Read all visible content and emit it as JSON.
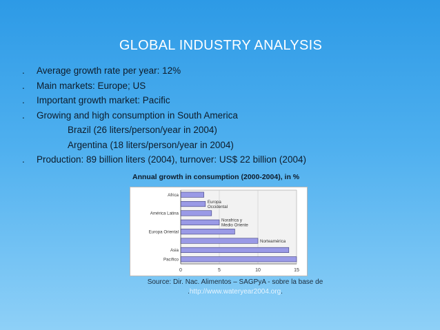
{
  "slide": {
    "title": "GLOBAL INDUSTRY ANALYSIS",
    "bullets": [
      {
        "mark": ".",
        "text": "Average growth rate per year: 12%"
      },
      {
        "mark": ".",
        "text": "Main markets: Europe; US"
      },
      {
        "mark": ".",
        "text": "Important growth market: Pacific"
      },
      {
        "mark": ".",
        "text": "Growing and high consumption in South America"
      },
      {
        "mark": "",
        "text": "Brazil (26 liters/person/year  in 2004)"
      },
      {
        "mark": "",
        "text": "Argentina (18 liters/person/year in 2004)"
      },
      {
        "mark": ".",
        "text": "Production: 89 billion liters (2004), turnover: US$ 22 billion (2004)"
      }
    ],
    "chart_caption": "Annual growth in consumption (2000-2004), in %",
    "source_line1": "Source: Dir. Nac. Alimentos – SAGPyA - sobre la base de",
    "source_prefix": ".",
    "source_link": "http://www.wateryear2004.org",
    "source_suffix": "."
  },
  "colors": {
    "background_top": "#2d9ae6",
    "background_bottom": "#8ed0f7",
    "bar_fill": "#9a9ae6",
    "bar_stroke": "#3c3c7a"
  },
  "chart_data": {
    "type": "bar",
    "orientation": "horizontal",
    "title": "Annual growth in consumption (2000-2004), in %",
    "categories": [
      "Africa",
      "Europa Occidental",
      "América Latina",
      "Norafrica y Medio Oriente",
      "Europa Oriental",
      "Norteamérica",
      "Asia",
      "Pacífico"
    ],
    "axis_labels": [
      "Africa",
      "",
      "América Latina",
      "",
      "Europa Oriental",
      "",
      "Asia",
      "Pacífico"
    ],
    "inline_labels": [
      "",
      "Europa Occidental",
      "",
      "Norafrica y Medio Oriente",
      "",
      "Norteamérica",
      "",
      ""
    ],
    "values": [
      3,
      3.2,
      4,
      5,
      7,
      10,
      14,
      15
    ],
    "xlim": [
      0,
      15
    ],
    "xticks": [
      "0",
      "5",
      "10",
      "15"
    ],
    "grid": true
  }
}
